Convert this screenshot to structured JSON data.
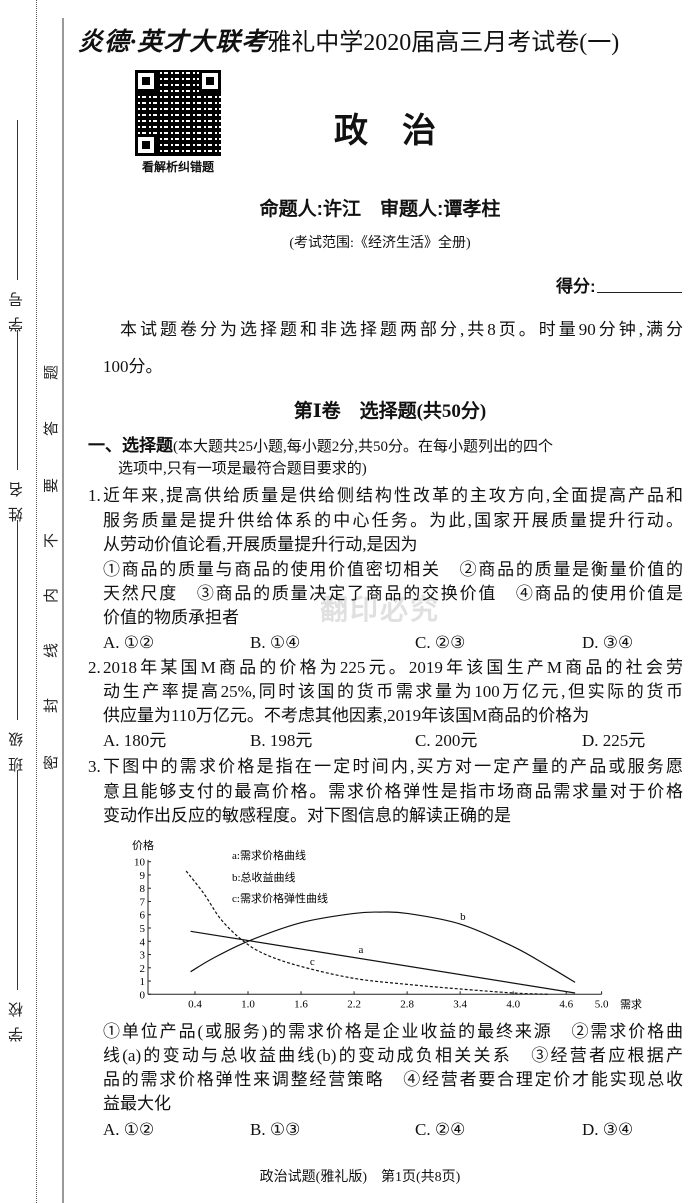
{
  "header": {
    "brand": "炎德·英才大联考",
    "title": "雅礼中学2020届高三月考试卷(一)",
    "qr_caption": "看解析纠错题",
    "subject": "政　治",
    "authors": "命题人:许江　审题人:谭孝柱",
    "scope": "(考试范围:《经济生活》全册)",
    "score_label": "得分:"
  },
  "margin": {
    "fields": [
      "学号",
      "姓名",
      "班级",
      "学校"
    ],
    "seal_chars": [
      "密",
      "封",
      "线",
      "内",
      "不",
      "要",
      "答",
      "题"
    ]
  },
  "watermark": "翻印必究",
  "intro": [
    "本试题卷分为选择题和非选择题两部分,共8页。时量90分钟,满分",
    "100分。"
  ],
  "section_title": "第Ⅰ卷　选择题(共50分)",
  "part": {
    "heading": "一、选择题",
    "note_1": "(本大题共25小题,每小题2分,共50分。在每小题列出的四个",
    "note_2": "选项中,只有一项是最符合题目要求的)"
  },
  "questions": [
    {
      "number": "1.",
      "lines": [
        "近年来,提高供给质量是供给侧结构性改革的主攻方向,全面提高产品和",
        "服务质量是提升供给体系的中心任务。为此,国家开展质量提升行动。",
        "从劳动价值论看,开展质量提升行动,是因为",
        "①商品的质量与商品的使用价值密切相关　②商品的质量是衡量价值的",
        "天然尺度　③商品的质量决定了商品的交换价值　④商品的使用价值是",
        "价值的物质承担者"
      ],
      "options": [
        "A. ①②",
        "B. ①④",
        "C. ②③",
        "D. ③④"
      ]
    },
    {
      "number": "2.",
      "lines": [
        "2018年某国M商品的价格为225元。2019年该国生产M商品的社会劳",
        "动生产率提高25%,同时该国的货币需求量为100万亿元,但实际的货币",
        "供应量为110万亿元。不考虑其他因素,2019年该国M商品的价格为"
      ],
      "options": [
        "A. 180元",
        "B. 198元",
        "C. 200元",
        "D. 225元"
      ]
    },
    {
      "number": "3.",
      "lines": [
        "下图中的需求价格是指在一定时间内,买方对一定产量的产品或服务愿",
        "意且能够支付的最高价格。需求价格弹性是指市场商品需求量对于价格",
        "变动作出反应的敏感程度。对下图信息的解读正确的是"
      ],
      "after_lines": [
        "①单位产品(或服务)的需求价格是企业收益的最终来源　②需求价格曲",
        "线(a)的变动与总收益曲线(b)的变动成负相关关系　③经营者应根据产",
        "品的需求价格弹性来调整经营策略　④经营者要合理定价才能实现总收",
        "益最大化"
      ],
      "options": [
        "A. ①②",
        "B. ①③",
        "C. ②④",
        "D. ③④"
      ]
    }
  ],
  "chart_data": {
    "type": "line",
    "title": "",
    "xlabel": "需求",
    "ylabel": "价格",
    "xlim": [
      0,
      5.0
    ],
    "ylim": [
      0,
      10
    ],
    "x_ticks": [
      "0.4",
      "1.0",
      "1.6",
      "2.2",
      "2.8",
      "3.4",
      "4.0",
      "4.6",
      "5.0"
    ],
    "y_ticks": [
      "0",
      "1",
      "2",
      "3",
      "4",
      "5",
      "6",
      "7",
      "8",
      "9",
      "10"
    ],
    "legend": [
      "a:需求价格曲线",
      "b:总收益曲线",
      "c:需求价格弹性曲线"
    ],
    "legend_position": "top-left",
    "series": [
      {
        "name": "a",
        "style": "solid",
        "label_at": [
          2.25,
          3.1
        ],
        "points": [
          [
            0.35,
            4.75
          ],
          [
            4.7,
            0.1
          ]
        ]
      },
      {
        "name": "b",
        "style": "solid",
        "label_at": [
          3.4,
          5.6
        ],
        "points": [
          [
            0.35,
            1.7
          ],
          [
            0.6,
            2.7
          ],
          [
            1.0,
            4.0
          ],
          [
            1.6,
            5.4
          ],
          [
            2.2,
            6.1
          ],
          [
            2.5,
            6.2
          ],
          [
            2.8,
            6.1
          ],
          [
            3.4,
            5.3
          ],
          [
            4.0,
            3.6
          ],
          [
            4.4,
            2.1
          ],
          [
            4.7,
            0.9
          ]
        ]
      },
      {
        "name": "c",
        "style": "dashed",
        "label_at": [
          1.7,
          2.2
        ],
        "points": [
          [
            0.3,
            9.3
          ],
          [
            0.5,
            7.6
          ],
          [
            0.7,
            5.6
          ],
          [
            0.95,
            4.0
          ],
          [
            1.2,
            3.0
          ],
          [
            1.6,
            2.1
          ],
          [
            2.2,
            1.2
          ],
          [
            2.8,
            0.75
          ],
          [
            3.4,
            0.4
          ],
          [
            4.0,
            0.1
          ],
          [
            4.4,
            0.0
          ]
        ]
      }
    ]
  },
  "footer": "政治试题(雅礼版)　第1页(共8页)"
}
